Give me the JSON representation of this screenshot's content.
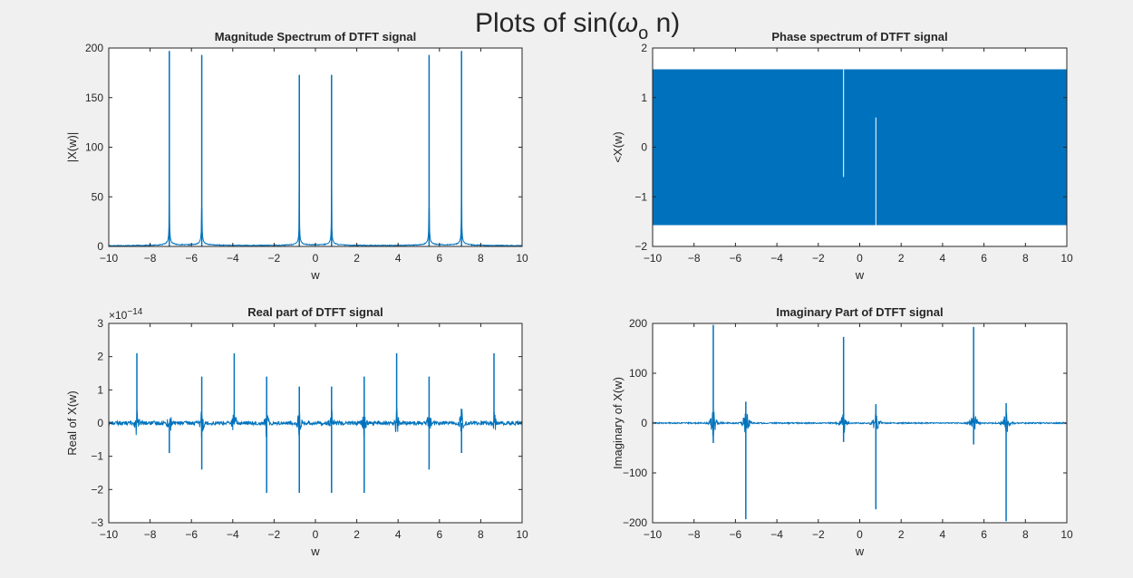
{
  "figure": {
    "suptitle_main": "Plots of sin(",
    "suptitle_omega": "ω",
    "suptitle_sub": "o",
    "suptitle_end": " n)"
  },
  "chart_data": [
    {
      "type": "line",
      "title": "Magnitude Spectrum of DTFT signal",
      "xlabel": "w",
      "ylabel": "|X(w)|",
      "xlim": [
        -10,
        10
      ],
      "ylim": [
        0,
        200
      ],
      "xticks": [
        "-10",
        "-8",
        "-6",
        "-4",
        "-2",
        "0",
        "2",
        "4",
        "6",
        "8",
        "10"
      ],
      "yticks": [
        "0",
        "50",
        "100",
        "150",
        "200"
      ],
      "exponent": "",
      "color": "#0072bd",
      "series": [
        {
          "spikes": [
            {
              "x": -7.07,
              "y": 197
            },
            {
              "x": -5.5,
              "y": 193
            },
            {
              "x": -0.78,
              "y": 173
            },
            {
              "x": 0.78,
              "y": 173
            },
            {
              "x": 5.5,
              "y": 193
            },
            {
              "x": 7.07,
              "y": 197
            }
          ]
        }
      ]
    },
    {
      "type": "area",
      "title": "Phase spectrum of DTFT signal",
      "xlabel": "w",
      "ylabel": "<X(w)",
      "xlim": [
        -10,
        10
      ],
      "ylim": [
        -2,
        2
      ],
      "xticks": [
        "-10",
        "-8",
        "-6",
        "-4",
        "-2",
        "0",
        "2",
        "4",
        "6",
        "8",
        "10"
      ],
      "yticks": [
        "-2",
        "-1",
        "0",
        "1",
        "2"
      ],
      "exponent": "",
      "color": "#0072bd",
      "band": {
        "low": -1.5708,
        "high": 1.5708
      },
      "gaps": [
        {
          "x": -0.78,
          "from": -0.6,
          "to": 1.5708
        },
        {
          "x": 0.78,
          "from": -1.5708,
          "to": 0.6
        }
      ]
    },
    {
      "type": "line",
      "title": "Real part of DTFT signal",
      "xlabel": "w",
      "ylabel": "Real of X(w)",
      "xlim": [
        -10,
        10
      ],
      "ylim": [
        -3,
        3
      ],
      "xticks": [
        "-10",
        "-8",
        "-6",
        "-4",
        "-2",
        "0",
        "2",
        "4",
        "6",
        "8",
        "10"
      ],
      "yticks": [
        "-3",
        "-2",
        "-1",
        "0",
        "1",
        "2",
        "3"
      ],
      "exponent": "×10",
      "exponent_power": "-14",
      "color": "#0072bd",
      "series": [
        {
          "spikes": [
            {
              "x": -8.64,
              "y": 2.1
            },
            {
              "x": -7.07,
              "y": -0.9
            },
            {
              "x": -5.5,
              "y": 1.4
            },
            {
              "x": -5.5,
              "y": -1.4
            },
            {
              "x": -3.93,
              "y": 2.1
            },
            {
              "x": -2.36,
              "y": 1.4
            },
            {
              "x": -2.36,
              "y": -2.1
            },
            {
              "x": -0.78,
              "y": 1.1
            },
            {
              "x": -0.78,
              "y": -2.1
            },
            {
              "x": 0.78,
              "y": 1.1
            },
            {
              "x": 0.78,
              "y": -2.1
            },
            {
              "x": 2.36,
              "y": 1.4
            },
            {
              "x": 2.36,
              "y": -2.1
            },
            {
              "x": 3.93,
              "y": 2.1
            },
            {
              "x": 5.5,
              "y": 1.4
            },
            {
              "x": 5.5,
              "y": -1.4
            },
            {
              "x": 7.07,
              "y": -0.9
            },
            {
              "x": 8.64,
              "y": 2.1
            }
          ]
        }
      ]
    },
    {
      "type": "line",
      "title": "Imaginary Part of DTFT signal",
      "xlabel": "w",
      "ylabel": "Imaginary of X(w)",
      "xlim": [
        -10,
        10
      ],
      "ylim": [
        -200,
        200
      ],
      "xticks": [
        "-10",
        "-8",
        "-6",
        "-4",
        "-2",
        "0",
        "2",
        "4",
        "6",
        "8",
        "10"
      ],
      "yticks": [
        "-200",
        "-100",
        "0",
        "100",
        "200"
      ],
      "exponent": "",
      "color": "#0072bd",
      "series": [
        {
          "spikes": [
            {
              "x": -7.07,
              "y": 197
            },
            {
              "x": -7.07,
              "y": -40
            },
            {
              "x": -5.5,
              "y": 43
            },
            {
              "x": -5.5,
              "y": -193
            },
            {
              "x": -0.78,
              "y": 173
            },
            {
              "x": -0.78,
              "y": -38
            },
            {
              "x": 0.78,
              "y": 38
            },
            {
              "x": 0.78,
              "y": -173
            },
            {
              "x": 5.5,
              "y": 193
            },
            {
              "x": 5.5,
              "y": -43
            },
            {
              "x": 7.07,
              "y": 40
            },
            {
              "x": 7.07,
              "y": -197
            }
          ]
        }
      ]
    }
  ]
}
